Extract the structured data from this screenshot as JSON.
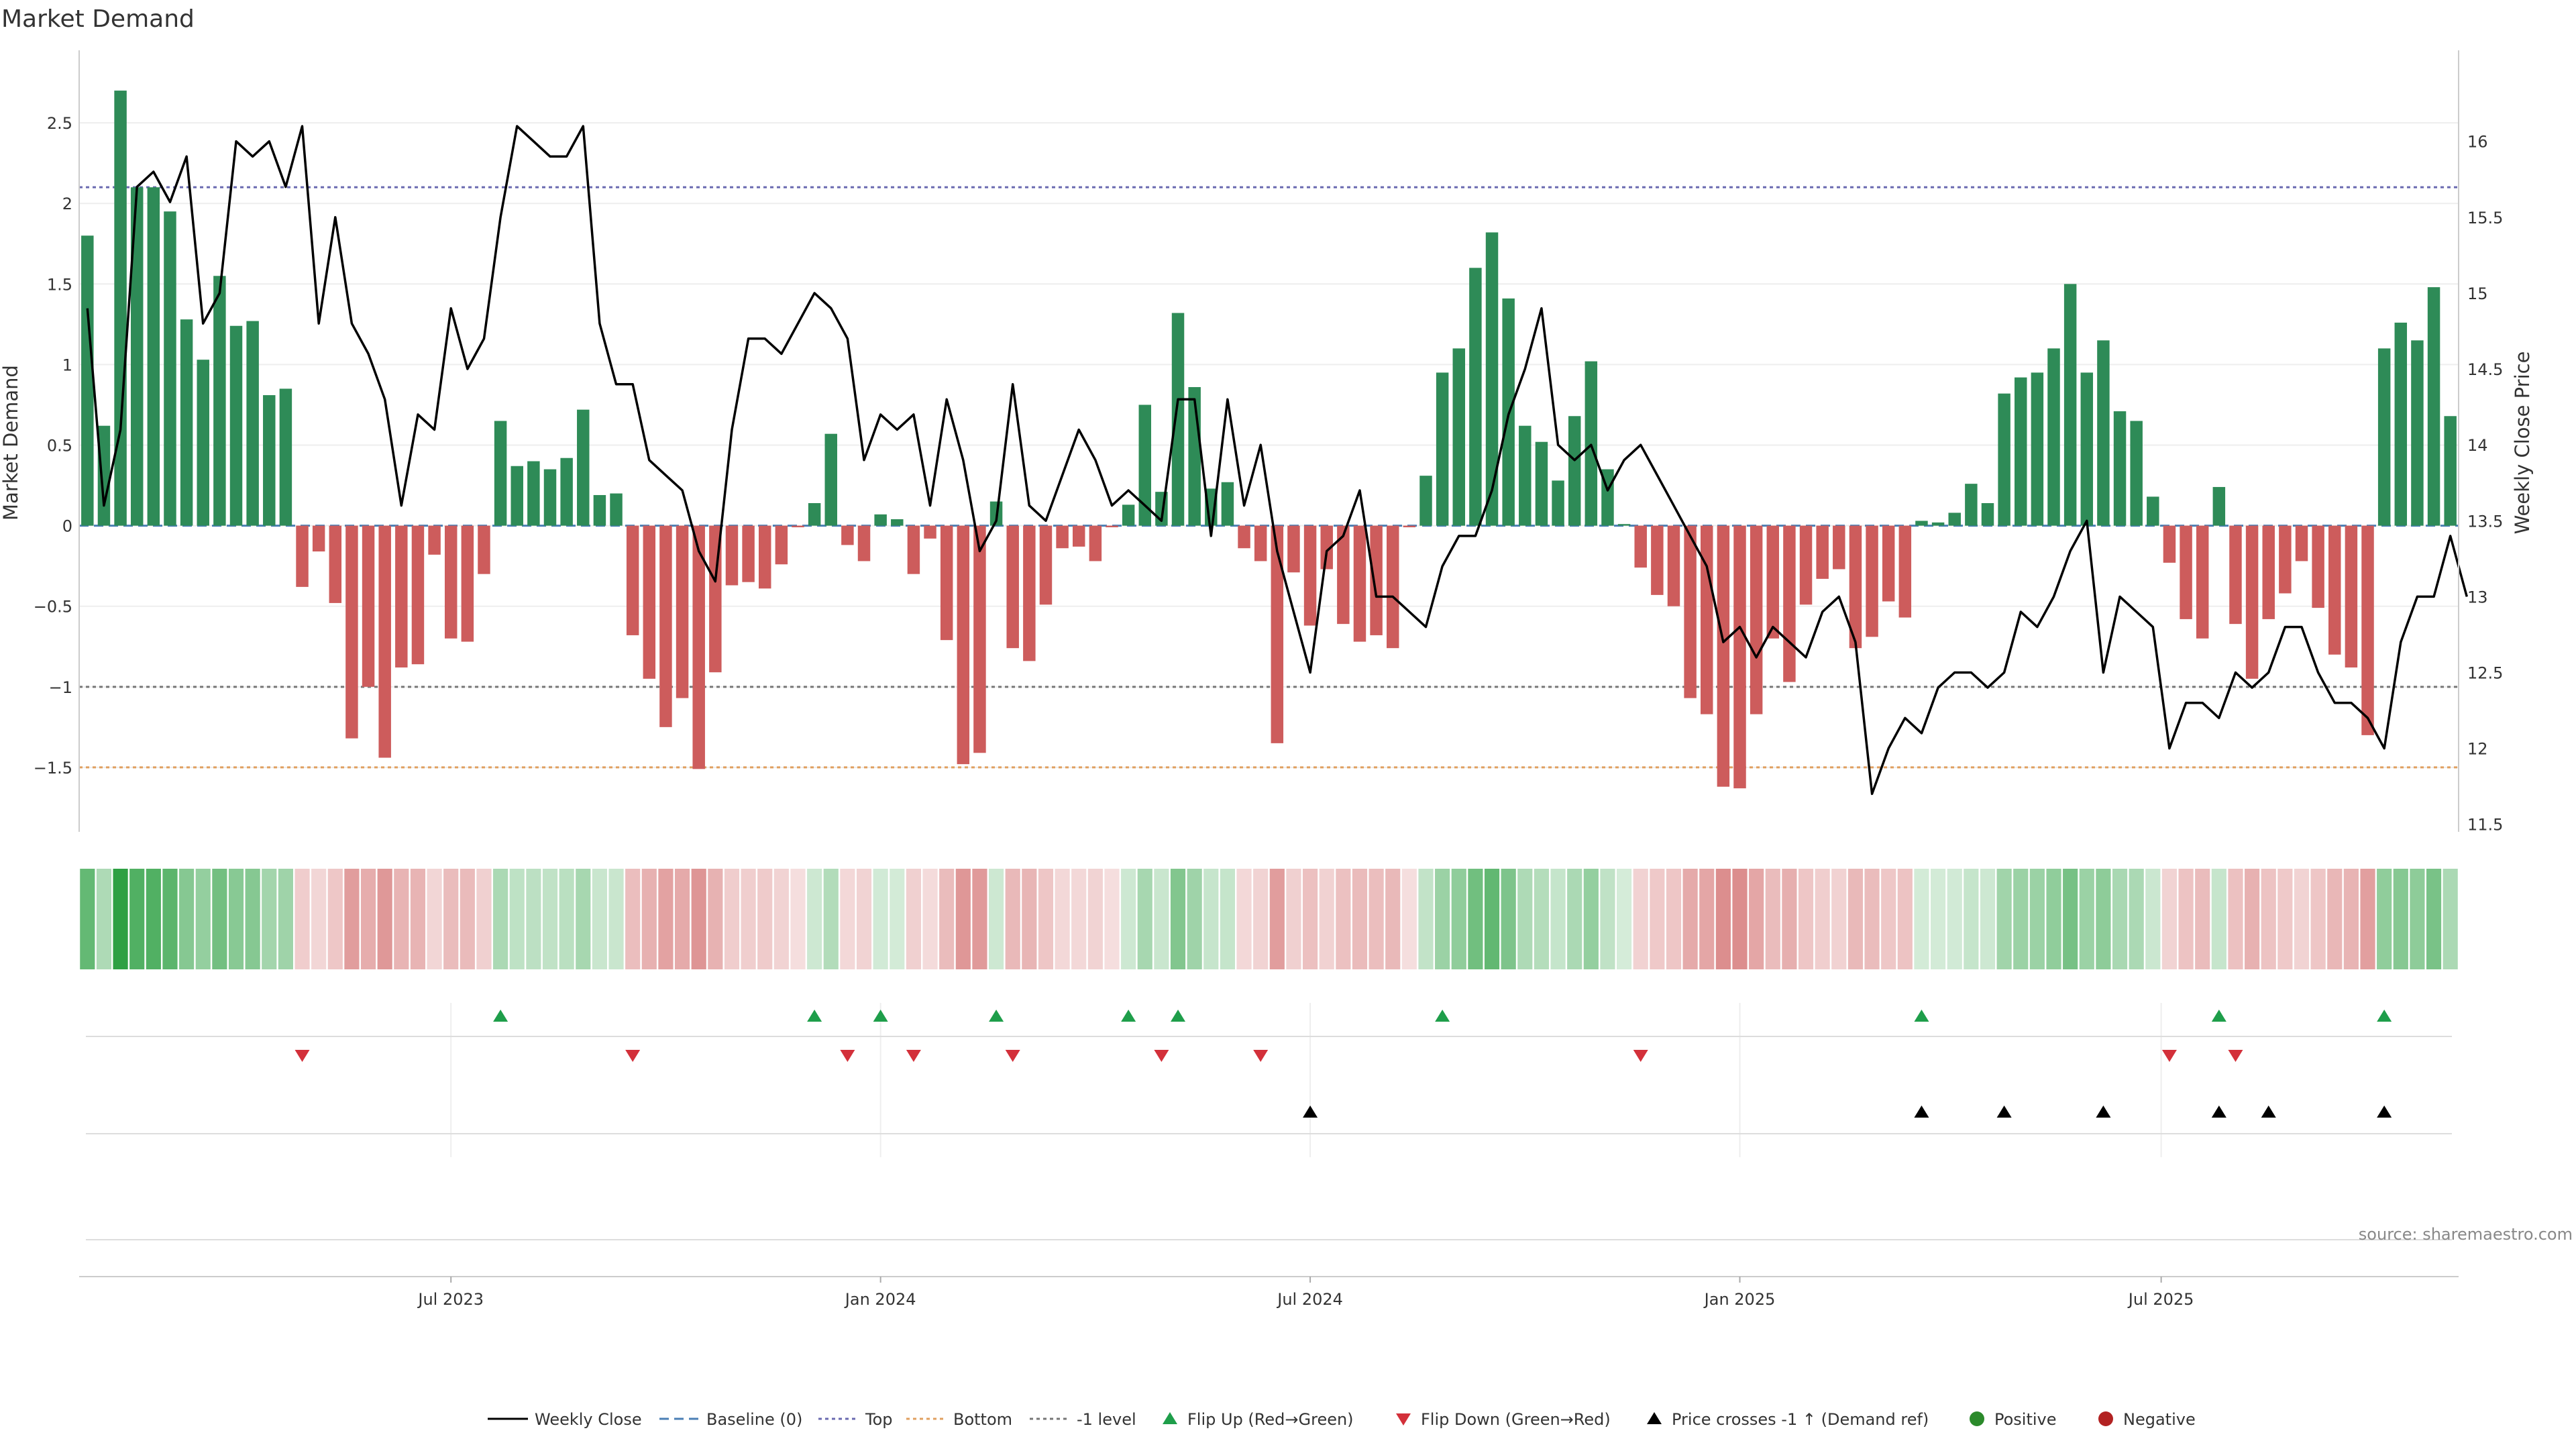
{
  "chart_data": {
    "type": "bar+line",
    "title": "Market Demand",
    "ylabel_left": "Market Demand",
    "ylabel_right": "Weekly Close Price",
    "ylim_left": [
      -1.9,
      2.95
    ],
    "ylim_right": [
      11.45,
      16.6
    ],
    "yticks_left": [
      "2.5",
      "2",
      "1.5",
      "1",
      "0.5",
      "0",
      "−0.5",
      "−1",
      "−1.5"
    ],
    "yticks_left_values": [
      2.5,
      2,
      1.5,
      1,
      0.5,
      0,
      -0.5,
      -1,
      -1.5
    ],
    "yticks_right": [
      "16",
      "15.5",
      "15",
      "14.5",
      "14",
      "13.5",
      "13",
      "12.5",
      "12",
      "11.5"
    ],
    "yticks_right_values": [
      16,
      15.5,
      15,
      14.5,
      14,
      13.5,
      13,
      12.5,
      12,
      11.5
    ],
    "x_tick_labels": [
      "Jul 2023",
      "Jan 2024",
      "Jul 2024",
      "Jan 2025",
      "Jul 2025"
    ],
    "x_tick_weeks": [
      22,
      48,
      74,
      100,
      125.5
    ],
    "reference_lines": [
      {
        "name": "Top",
        "value": 2.1,
        "color": "#6a6ab0"
      },
      {
        "name": "Bottom",
        "value": -1.5,
        "color": "#e0a060"
      },
      {
        "name": "-1 level",
        "value": -1,
        "color": "#777777"
      }
    ],
    "demand": [
      1.8,
      0.62,
      2.7,
      2.1,
      2.1,
      1.95,
      1.28,
      1.03,
      1.55,
      1.24,
      1.27,
      0.81,
      0.85,
      -0.38,
      -0.16,
      -0.48,
      -1.32,
      -1.0,
      -1.44,
      -0.88,
      -0.86,
      -0.18,
      -0.7,
      -0.72,
      -0.3,
      0.65,
      0.37,
      0.4,
      0.35,
      0.42,
      0.72,
      0.19,
      0.2,
      -0.68,
      -0.95,
      -1.25,
      -1.07,
      -1.51,
      -0.91,
      -0.37,
      -0.35,
      -0.39,
      -0.24,
      -0.01,
      0.14,
      0.57,
      -0.12,
      -0.22,
      0.07,
      0.04,
      -0.3,
      -0.08,
      -0.71,
      -1.48,
      -1.41,
      0.15,
      -0.76,
      -0.84,
      -0.49,
      -0.14,
      -0.13,
      -0.22,
      -0.01,
      0.13,
      0.75,
      0.21,
      1.32,
      0.86,
      0.23,
      0.27,
      -0.14,
      -0.22,
      -1.35,
      -0.29,
      -0.62,
      -0.27,
      -0.61,
      -0.72,
      -0.68,
      -0.76,
      -0.01,
      0.31,
      0.95,
      1.1,
      1.6,
      1.82,
      1.41,
      0.62,
      0.52,
      0.28,
      0.68,
      1.02,
      0.35,
      0.01,
      -0.26,
      -0.43,
      -0.5,
      -1.07,
      -1.17,
      -1.62,
      -1.63,
      -1.17,
      -0.7,
      -0.97,
      -0.49,
      -0.33,
      -0.27,
      -0.76,
      -0.69,
      -0.47,
      -0.57,
      0.03,
      0.02,
      0.08,
      0.26,
      0.14,
      0.82,
      0.92,
      0.95,
      1.1,
      1.5,
      0.95,
      1.15,
      0.71,
      0.65,
      0.18,
      -0.23,
      -0.58,
      -0.7,
      0.24,
      -0.61,
      -0.95,
      -0.58,
      -0.42,
      -0.22,
      -0.51,
      -0.8,
      -0.88,
      -1.3,
      1.1,
      1.26,
      1.15,
      1.48,
      0.68
    ],
    "weekly_close": [
      14.9,
      13.6,
      14.1,
      15.7,
      15.8,
      15.6,
      15.9,
      14.8,
      15.0,
      16.0,
      15.9,
      16.0,
      15.7,
      16.1,
      14.8,
      15.5,
      14.8,
      14.6,
      14.3,
      13.6,
      14.2,
      14.1,
      14.9,
      14.5,
      14.7,
      15.5,
      16.1,
      16.0,
      15.9,
      15.9,
      16.1,
      14.8,
      14.4,
      14.4,
      13.9,
      13.8,
      13.7,
      13.3,
      13.1,
      14.1,
      14.7,
      14.7,
      14.6,
      14.8,
      15.0,
      14.9,
      14.7,
      13.9,
      14.2,
      14.1,
      14.2,
      13.6,
      14.3,
      13.9,
      13.3,
      13.5,
      14.4,
      13.6,
      13.5,
      13.8,
      14.1,
      13.9,
      13.6,
      13.7,
      13.6,
      13.5,
      14.3,
      14.3,
      13.4,
      14.3,
      13.6,
      14.0,
      13.3,
      12.9,
      12.5,
      13.3,
      13.4,
      13.7,
      13.0,
      13.0,
      12.9,
      12.8,
      13.2,
      13.4,
      13.4,
      13.7,
      14.2,
      14.5,
      14.9,
      14.0,
      13.9,
      14.0,
      13.7,
      13.9,
      14.0,
      13.8,
      13.6,
      13.4,
      13.2,
      12.7,
      12.8,
      12.6,
      12.8,
      12.7,
      12.6,
      12.9,
      13.0,
      12.7,
      11.7,
      12.0,
      12.2,
      12.1,
      12.4,
      12.5,
      12.5,
      12.4,
      12.5,
      12.9,
      12.8,
      13.0,
      13.3,
      13.5,
      12.5,
      13.0,
      12.9,
      12.8,
      12.0,
      12.3,
      12.3,
      12.2,
      12.5,
      12.4,
      12.5,
      12.8,
      12.8,
      12.5,
      12.3,
      12.3,
      12.2,
      12.0,
      12.7,
      13.0,
      13.0,
      13.4,
      13.0
    ],
    "flip_up_weeks": [
      25,
      44,
      48,
      55,
      63,
      66,
      82,
      111,
      129,
      139
    ],
    "flip_down_weeks": [
      13,
      33,
      46,
      50,
      56,
      65,
      71,
      94,
      126,
      130
    ],
    "price_cross_weeks": [
      74,
      111,
      116,
      122,
      129,
      132,
      139
    ],
    "legend": [
      "Weekly Close",
      "Baseline (0)",
      "Top",
      "Bottom",
      "-1 level",
      "Flip Up (Red→Green)",
      "Flip Down (Green→Red)",
      "Price crosses -1 ↑ (Demand ref)",
      "Positive",
      "Negative"
    ],
    "colors": {
      "positive": "#2e8b57",
      "negative": "#cd5c5c",
      "flip_up": "#1e9e4a",
      "flip_down": "#d3303a",
      "price_cross": "#000000",
      "positive_dot": "#2b8a2b",
      "negative_dot": "#b22222"
    }
  },
  "source": "source: sharemaestro.com"
}
